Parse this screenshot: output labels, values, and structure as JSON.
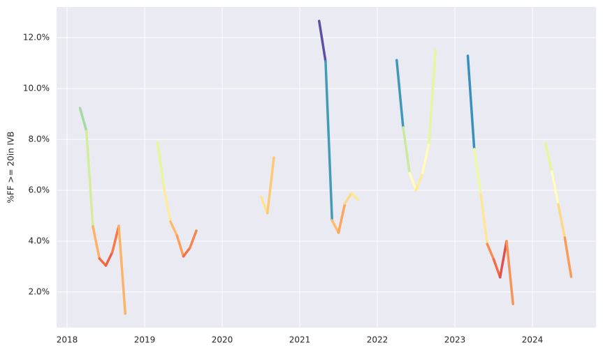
{
  "chart_data": {
    "type": "line",
    "ylabel": "%FF >= 20in IVB",
    "xlim": [
      2017.865,
      2024.82
    ],
    "xticks": [
      2018,
      2019,
      2020,
      2021,
      2022,
      2023,
      2024
    ],
    "ylim": [
      0.6,
      13.21
    ],
    "yticks": [
      {
        "value": 2,
        "label": "2.0%"
      },
      {
        "value": 4,
        "label": "4.0%"
      },
      {
        "value": 6,
        "label": "6.0%"
      },
      {
        "value": 8,
        "label": "8.0%"
      },
      {
        "value": 10,
        "label": "10.0%"
      },
      {
        "value": 12,
        "label": "12.0%"
      }
    ],
    "grid": true,
    "colormap": [
      "#9e0142",
      "#d53e4f",
      "#f46d43",
      "#fdae61",
      "#fee08b",
      "#ffffbf",
      "#e6f598",
      "#abdda4",
      "#66c2a5",
      "#3288bd",
      "#5e4fa2"
    ],
    "clim": [
      1,
      12.6
    ],
    "series": [
      {
        "x": [
          2018.167,
          2018.25,
          2018.333,
          2018.417,
          2018.5,
          2018.583,
          2018.667,
          2018.75
        ],
        "values": [
          9.23,
          8.33,
          4.58,
          3.32,
          3.04,
          3.56,
          4.6,
          1.15
        ]
      },
      {
        "x": [
          2019.167,
          2019.25,
          2019.333,
          2019.417,
          2019.5,
          2019.583,
          2019.667
        ],
        "values": [
          7.89,
          6.05,
          4.77,
          4.22,
          3.4,
          3.73,
          4.41
        ]
      },
      {
        "x": [
          2020.5,
          2020.583,
          2020.667
        ],
        "values": [
          5.75,
          5.1,
          7.29
        ]
      },
      {
        "x": [
          2021.25,
          2021.333,
          2021.417,
          2021.5,
          2021.583,
          2021.667,
          2021.75
        ],
        "values": [
          12.66,
          11.07,
          4.82,
          4.33,
          5.48,
          5.89,
          5.62
        ]
      },
      {
        "x": [
          2022.25,
          2022.333,
          2022.417,
          2022.5,
          2022.583,
          2022.667,
          2022.75
        ],
        "values": [
          11.12,
          8.47,
          6.68,
          6.0,
          6.68,
          7.86,
          11.51
        ]
      },
      {
        "x": [
          2023.167,
          2023.25,
          2023.333,
          2023.417,
          2023.5,
          2023.583,
          2023.667,
          2023.75
        ],
        "values": [
          11.29,
          7.62,
          5.86,
          3.89,
          3.29,
          2.58,
          4.0,
          1.53
        ]
      },
      {
        "x": [
          2024.167,
          2024.25,
          2024.333,
          2024.417,
          2024.5
        ],
        "values": [
          7.86,
          6.74,
          5.45,
          4.14,
          2.6
        ]
      }
    ]
  }
}
